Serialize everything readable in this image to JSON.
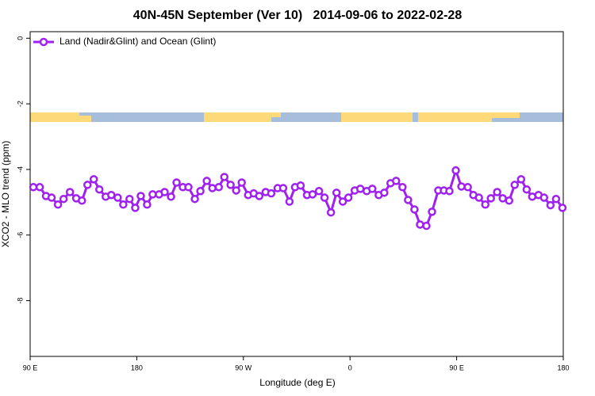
{
  "chart_data": {
    "type": "line",
    "title": "40N-45N September (Ver 10)   2014-09-06 to 2022-02-28",
    "x_label": "Longitude (deg E)",
    "y_label": "XCO2 - MLO trend (ppm)",
    "legend_position": "top-left",
    "xlim": [
      90,
      540
    ],
    "xticks": [
      {
        "value": 90,
        "label": "90 E"
      },
      180,
      {
        "value": 270,
        "label": "90 W"
      },
      {
        "value": 360,
        "label": "0"
      },
      {
        "value": 450,
        "label": "90 E"
      },
      {
        "value": 540,
        "label": "180"
      }
    ],
    "ylim": [
      -9.7,
      0.2
    ],
    "yticks": [
      0,
      -2,
      -4,
      -6,
      -8
    ],
    "x": [
      92.7,
      98.1,
      103.4,
      108.1,
      113.5,
      118.2,
      123.6,
      128.9,
      133.7,
      138.4,
      143.7,
      148.4,
      153.8,
      158.5,
      163.9,
      168.6,
      173.9,
      178.7,
      183.4,
      188.7,
      193.4,
      198.8,
      203.5,
      208.9,
      213.6,
      218.9,
      223.6,
      229.0,
      233.7,
      239.1,
      243.8,
      249.2,
      253.9,
      259.2,
      263.9,
      268.6,
      274.0,
      278.7,
      283.4,
      288.8,
      293.5,
      298.9,
      303.6,
      308.9,
      313.6,
      318.3,
      323.7,
      328.4,
      333.8,
      338.5,
      343.9,
      348.6,
      353.9,
      358.6,
      364.0,
      368.7,
      374.1,
      378.8,
      384.2,
      388.9,
      394.2,
      398.9,
      404.3,
      409.0,
      414.4,
      419.1,
      424.5,
      429.2,
      434.5,
      439.2,
      443.9,
      449.3,
      454.0,
      459.4,
      464.1,
      468.8,
      474.2,
      478.9,
      484.2,
      488.9,
      494.3,
      499.0,
      504.4,
      509.1,
      513.8,
      519.1,
      523.8,
      529.2,
      533.9,
      539.3
    ],
    "series": [
      {
        "name": "Land (Nadir&Glint) and Ocean (Glint)",
        "color": "#a020f0",
        "values": [
          -4.54,
          -4.54,
          -4.81,
          -4.86,
          -5.07,
          -4.9,
          -4.69,
          -4.88,
          -4.95,
          -4.47,
          -4.3,
          -4.61,
          -4.83,
          -4.78,
          -4.86,
          -5.07,
          -4.9,
          -5.17,
          -4.81,
          -5.07,
          -4.76,
          -4.76,
          -4.69,
          -4.83,
          -4.4,
          -4.54,
          -4.54,
          -4.9,
          -4.66,
          -4.35,
          -4.57,
          -4.54,
          -4.23,
          -4.47,
          -4.64,
          -4.4,
          -4.78,
          -4.73,
          -4.81,
          -4.69,
          -4.73,
          -4.57,
          -4.57,
          -4.98,
          -4.54,
          -4.49,
          -4.78,
          -4.76,
          -4.66,
          -4.86,
          -5.31,
          -4.71,
          -4.98,
          -4.86,
          -4.64,
          -4.59,
          -4.66,
          -4.59,
          -4.78,
          -4.71,
          -4.42,
          -4.35,
          -4.54,
          -4.93,
          -5.22,
          -5.68,
          -5.72,
          -5.29,
          -4.64,
          -4.64,
          -4.66,
          -4.03,
          -4.52,
          -4.54,
          -4.78,
          -4.86,
          -5.07,
          -4.88,
          -4.69,
          -4.88,
          -4.95,
          -4.47,
          -4.3,
          -4.61,
          -4.83,
          -4.78,
          -4.86,
          -5.09,
          -4.9,
          -5.17
        ]
      }
    ]
  }
}
